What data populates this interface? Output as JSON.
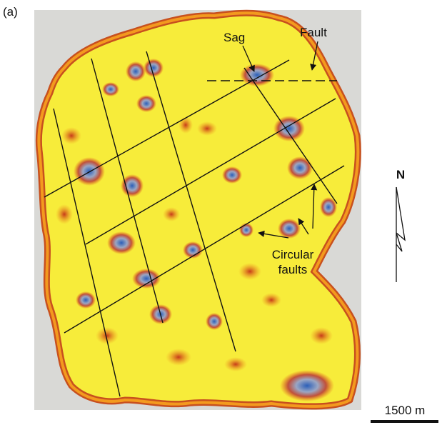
{
  "panel_label": "(a)",
  "annotations": {
    "sag": "Sag",
    "fault": "Fault",
    "circular_faults": [
      "Circular",
      "faults"
    ]
  },
  "north_arrow": "N",
  "scale_bar": "1500 m"
}
